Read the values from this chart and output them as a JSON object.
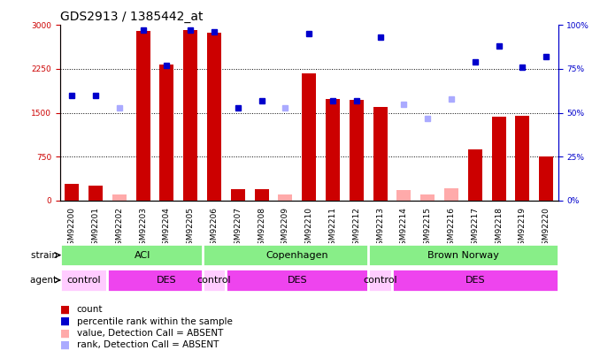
{
  "title": "GDS2913 / 1385442_at",
  "samples": [
    "GSM92200",
    "GSM92201",
    "GSM92202",
    "GSM92203",
    "GSM92204",
    "GSM92205",
    "GSM92206",
    "GSM92207",
    "GSM92208",
    "GSM92209",
    "GSM92210",
    "GSM92211",
    "GSM92212",
    "GSM92213",
    "GSM92214",
    "GSM92215",
    "GSM92216",
    "GSM92217",
    "GSM92218",
    "GSM92219",
    "GSM92220"
  ],
  "count": [
    280,
    250,
    null,
    2900,
    2320,
    2920,
    2870,
    190,
    200,
    null,
    2170,
    1730,
    1720,
    1600,
    null,
    null,
    null,
    880,
    1430,
    1450,
    750
  ],
  "count_absent": [
    null,
    null,
    110,
    null,
    null,
    null,
    null,
    null,
    null,
    110,
    null,
    null,
    null,
    null,
    175,
    100,
    215,
    null,
    null,
    null,
    null
  ],
  "rank_present": [
    60,
    60,
    null,
    97,
    77,
    97,
    96,
    53,
    57,
    null,
    95,
    57,
    57,
    93,
    null,
    null,
    null,
    79,
    88,
    76,
    82
  ],
  "rank_absent": [
    null,
    null,
    53,
    null,
    null,
    null,
    null,
    null,
    null,
    53,
    null,
    null,
    null,
    null,
    55,
    47,
    58,
    null,
    null,
    null,
    null
  ],
  "ylim_left": [
    0,
    3000
  ],
  "ylim_right": [
    0,
    100
  ],
  "yticks_left": [
    0,
    750,
    1500,
    2250,
    3000
  ],
  "yticks_right": [
    0,
    25,
    50,
    75,
    100
  ],
  "grid_values": [
    750,
    1500,
    2250
  ],
  "bar_color_present": "#cc0000",
  "bar_color_absent": "#ffaaaa",
  "dot_color_present": "#0000cc",
  "dot_color_absent": "#aaaaff",
  "bar_width": 0.6,
  "title_fontsize": 10,
  "tick_fontsize": 6.5,
  "label_fontsize": 8,
  "left_axis_color": "#cc0000",
  "right_axis_color": "#0000cc",
  "strain_color": "#88ee88",
  "control_color": "#ffccff",
  "des_color": "#ee44ee",
  "strain_groups": [
    {
      "label": "ACI",
      "start": 0,
      "end": 6
    },
    {
      "label": "Copenhagen",
      "start": 6,
      "end": 13
    },
    {
      "label": "Brown Norway",
      "start": 13,
      "end": 20
    }
  ],
  "agent_groups": [
    {
      "label": "control",
      "start": 0,
      "end": 1,
      "type": "control"
    },
    {
      "label": "DES",
      "start": 2,
      "end": 6,
      "type": "des"
    },
    {
      "label": "control",
      "start": 6,
      "end": 6,
      "type": "control"
    },
    {
      "label": "DES",
      "start": 7,
      "end": 12,
      "type": "des"
    },
    {
      "label": "control",
      "start": 13,
      "end": 13,
      "type": "control"
    },
    {
      "label": "DES",
      "start": 14,
      "end": 20,
      "type": "des"
    }
  ]
}
